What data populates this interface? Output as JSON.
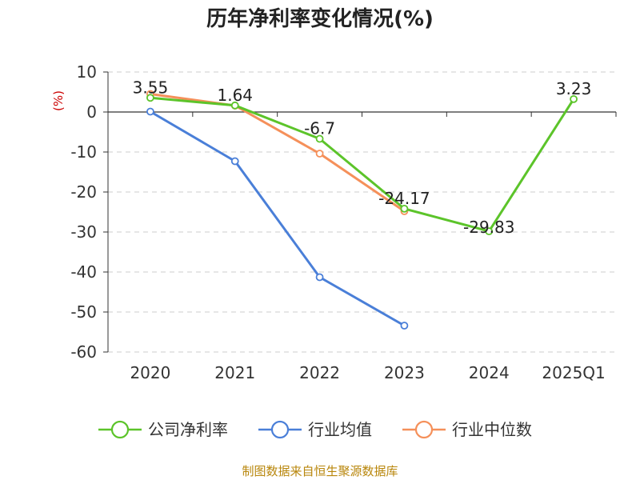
{
  "chart_data": {
    "type": "line",
    "title": "历年净利率变化情况(%)",
    "unit_label": "(%)",
    "categories": [
      "2020",
      "2021",
      "2022",
      "2023",
      "2024",
      "2025Q1"
    ],
    "ylim": [
      -60,
      10
    ],
    "yticks": [
      10,
      0,
      -10,
      -20,
      -30,
      -40,
      -50,
      -60
    ],
    "grid": true,
    "legend_position": "bottom",
    "series": [
      {
        "name": "公司净利率",
        "color": "#5cc42a",
        "values": [
          3.55,
          1.64,
          -6.7,
          -24.17,
          -29.83,
          3.23
        ],
        "labels": [
          "3.55",
          "1.64",
          "-6.7",
          "-24.17",
          "-29.83",
          "3.23"
        ]
      },
      {
        "name": "行业均值",
        "color": "#4a7fd8",
        "values": [
          0.1,
          -12.3,
          -41.3,
          -53.4,
          null,
          null
        ]
      },
      {
        "name": "行业中位数",
        "color": "#f5905a",
        "values": [
          4.5,
          1.6,
          -10.4,
          -24.8,
          null,
          null
        ]
      }
    ],
    "source": "制图数据来自恒生聚源数据库"
  }
}
